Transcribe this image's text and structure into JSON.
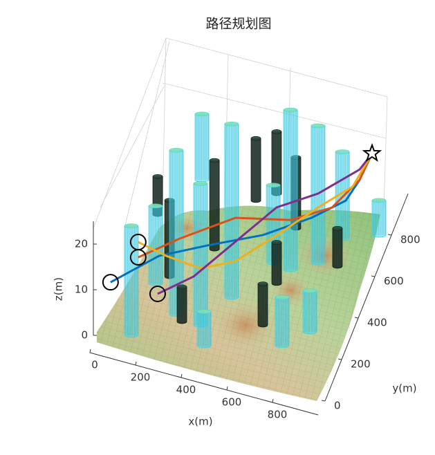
{
  "chart_data": {
    "type": "line3d",
    "title": "路径规划图",
    "xlabel": "x(m)",
    "ylabel": "y(m)",
    "zlabel": "z(m)",
    "xlim": [
      0,
      1000
    ],
    "ylim": [
      0,
      1000
    ],
    "zlim": [
      0,
      25
    ],
    "xticks": [
      0,
      200,
      400,
      600,
      800
    ],
    "yticks": [
      0,
      200,
      400,
      600,
      800
    ],
    "zticks": [
      0,
      10,
      20
    ],
    "grid": true,
    "series": [
      {
        "color": "#0072BD",
        "x": [
          56,
          213,
          395,
          605,
          769,
          878,
          900,
          900
        ],
        "y": [
          53,
          205,
          288,
          379,
          511,
          627,
          734,
          883
        ],
        "z": [
          10,
          11,
          12,
          13,
          13,
          13,
          13,
          12
        ]
      },
      {
        "color": "#D95319",
        "x": [
          162,
          311,
          505,
          719,
          856,
          907,
          900
        ],
        "y": [
          95,
          186,
          322,
          398,
          521,
          714,
          883
        ],
        "z": [
          15,
          17,
          18,
          17,
          16,
          14,
          12
        ]
      },
      {
        "color": "#EDB120",
        "x": [
          174,
          298,
          433,
          544,
          667,
          787,
          883,
          900
        ],
        "y": [
          62,
          55,
          101,
          212,
          375,
          545,
          696,
          883
        ],
        "z": [
          20,
          19,
          16,
          14,
          14,
          14,
          13,
          12
        ]
      },
      {
        "color": "#7E2F8E",
        "x": [
          246,
          375,
          506,
          630,
          772,
          891,
          900
        ],
        "y": [
          98,
          176,
          316,
          476,
          585,
          759,
          883
        ],
        "z": [
          8,
          10,
          13,
          15,
          15,
          14,
          12
        ]
      }
    ],
    "obstacle_groups": [
      {
        "color": "#3fd3e6",
        "x": [
          150,
          295,
          407,
          454,
          486,
          762,
          850,
          675,
          596,
          773,
          831,
          970,
          183,
          164
        ],
        "y": [
          45,
          189,
          172,
          86,
          329,
          179,
          272,
          519,
          529,
          582,
          716,
          774,
          805,
          299
        ],
        "height": [
          24,
          36,
          31,
          7.5,
          38,
          10.6,
          9,
          35,
          17,
          30,
          19,
          7.6,
          14.4,
          17
        ]
      },
      {
        "color": "#10201a",
        "x": [
          63,
          208,
          328,
          342,
          429,
          500,
          631,
          653,
          642,
          855
        ],
        "y": [
          602,
          346,
          165,
          519,
          779,
          833,
          706,
          246,
          443,
          590
        ],
        "height": [
          8.3,
          16.7,
          7.6,
          19.4,
          13.6,
          13.6,
          15.5,
          9,
          9,
          8.3
        ]
      }
    ]
  }
}
